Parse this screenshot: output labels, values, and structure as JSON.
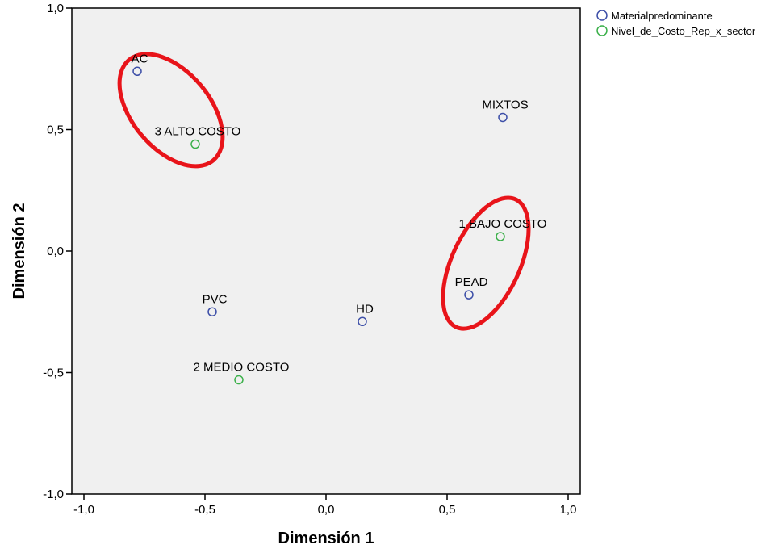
{
  "chart_data": {
    "type": "scatter",
    "title": "",
    "xlabel": "Dimensión 1",
    "ylabel": "Dimensión 2",
    "xlim": [
      -1.05,
      1.05
    ],
    "ylim": [
      -1.0,
      1.0
    ],
    "xticks": [
      -1.0,
      -0.5,
      0.0,
      0.5,
      1.0
    ],
    "yticks": [
      -1.0,
      -0.5,
      0.0,
      0.5,
      1.0
    ],
    "xtick_labels": [
      "-1,0",
      "-0,5",
      "0,0",
      "0,5",
      "1,0"
    ],
    "ytick_labels": [
      "-1,0",
      "-0,5",
      "0,0",
      "0,5",
      "1,0"
    ],
    "grid": false,
    "legend_position": "top-right, outside plot",
    "background_color": "#f0f0f0",
    "series": [
      {
        "name": "Materialpredominante",
        "color": "#3d4fa8",
        "points": [
          {
            "label": "AC",
            "x": -0.78,
            "y": 0.74
          },
          {
            "label": "MIXTOS",
            "x": 0.73,
            "y": 0.55
          },
          {
            "label": "PEAD",
            "x": 0.59,
            "y": -0.18
          },
          {
            "label": "PVC",
            "x": -0.47,
            "y": -0.25
          },
          {
            "label": "HD",
            "x": 0.15,
            "y": -0.29
          }
        ]
      },
      {
        "name": "Nivel_de_Costo_Rep_x_sector",
        "color": "#3bb04a",
        "points": [
          {
            "label": "3 ALTO COSTO",
            "x": -0.54,
            "y": 0.44
          },
          {
            "label": "1 BAJO COSTO",
            "x": 0.72,
            "y": 0.06
          },
          {
            "label": "2 MEDIO COSTO",
            "x": -0.36,
            "y": -0.53
          }
        ]
      }
    ],
    "annotations": [
      {
        "type": "ellipse",
        "color": "#e8141a",
        "cx": -0.64,
        "cy": 0.58,
        "rx": 0.16,
        "ry": 0.27,
        "rotate": -40
      },
      {
        "type": "ellipse",
        "color": "#e8141a",
        "cx": 0.66,
        "cy": -0.05,
        "rx": 0.14,
        "ry": 0.29,
        "rotate": 25
      }
    ]
  }
}
